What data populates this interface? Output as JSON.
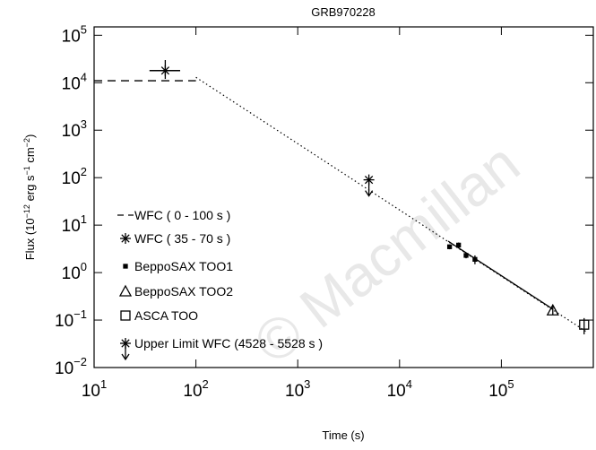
{
  "chart_data": {
    "type": "scatter",
    "title": "GRB970228",
    "x_label": "Time (s)",
    "y_label": [
      "Flux (10",
      "−12",
      " erg s",
      "−1",
      " cm",
      "−2",
      ")"
    ],
    "log_x": true,
    "log_y": true,
    "color": "#000000",
    "xlim": [
      10,
      800000
    ],
    "ylim": [
      0.01,
      150000
    ],
    "xticks": [
      {
        "value": 10,
        "label": "10",
        "exp": "1"
      },
      {
        "value": 100,
        "label": "10",
        "exp": "2"
      },
      {
        "value": 1000,
        "label": "10",
        "exp": "3"
      },
      {
        "value": 10000,
        "label": "10",
        "exp": "4"
      },
      {
        "value": 100000,
        "label": "10",
        "exp": "5"
      }
    ],
    "yticks": [
      {
        "value": 0.01,
        "label": "10",
        "exp": "−2"
      },
      {
        "value": 0.1,
        "label": "10",
        "exp": "−1"
      },
      {
        "value": 1,
        "label": "10",
        "exp": "0"
      },
      {
        "value": 10,
        "label": "10",
        "exp": "1"
      },
      {
        "value": 100,
        "label": "10",
        "exp": "2"
      },
      {
        "value": 1000,
        "label": "10",
        "exp": "3"
      },
      {
        "value": 10000,
        "label": "10",
        "exp": "4"
      },
      {
        "value": 100000,
        "label": "10",
        "exp": "5"
      }
    ],
    "series": [
      {
        "name": "WFC ( 0 - 100 s )",
        "marker": "dash",
        "x": [
          10,
          100
        ],
        "values": [
          11000,
          11000
        ]
      },
      {
        "name": "WFC ( 35 - 70 s )",
        "marker": "star",
        "x": [
          50
        ],
        "values": [
          18000
        ],
        "y_low": [
          12000
        ],
        "y_high": [
          30000
        ],
        "x_low": [
          35
        ],
        "x_high": [
          70
        ]
      },
      {
        "name": "BeppoSAX TOO1",
        "marker": "dot",
        "x": [
          31000,
          38000,
          45000,
          55000
        ],
        "values": [
          3.5,
          3.8,
          2.3,
          1.9
        ],
        "y_low": [
          3.1,
          3.3,
          2.0,
          1.5
        ],
        "y_high": [
          3.9,
          4.3,
          2.6,
          2.3
        ]
      },
      {
        "name": "BeppoSAX TOO2",
        "marker": "triangle",
        "x": [
          320000
        ],
        "values": [
          0.16
        ],
        "y_low": [
          0.13
        ],
        "y_high": [
          0.2
        ]
      },
      {
        "name": "ASCA TOO",
        "marker": "square",
        "x": [
          650000
        ],
        "values": [
          0.08
        ],
        "y_low": [
          0.05
        ],
        "y_high": [
          0.11
        ]
      },
      {
        "name": "Upper Limit WFC (4528 - 5528 s )",
        "marker": "upper",
        "x": [
          5000
        ],
        "values": [
          90
        ]
      }
    ],
    "lines": [
      {
        "style": "dotted",
        "x": [
          100,
          700000
        ],
        "values": [
          13000,
          0.055
        ]
      },
      {
        "style": "solid",
        "x": [
          30000,
          320000
        ],
        "values": [
          4.6,
          0.17
        ]
      }
    ],
    "watermark": "© Macmillan"
  }
}
